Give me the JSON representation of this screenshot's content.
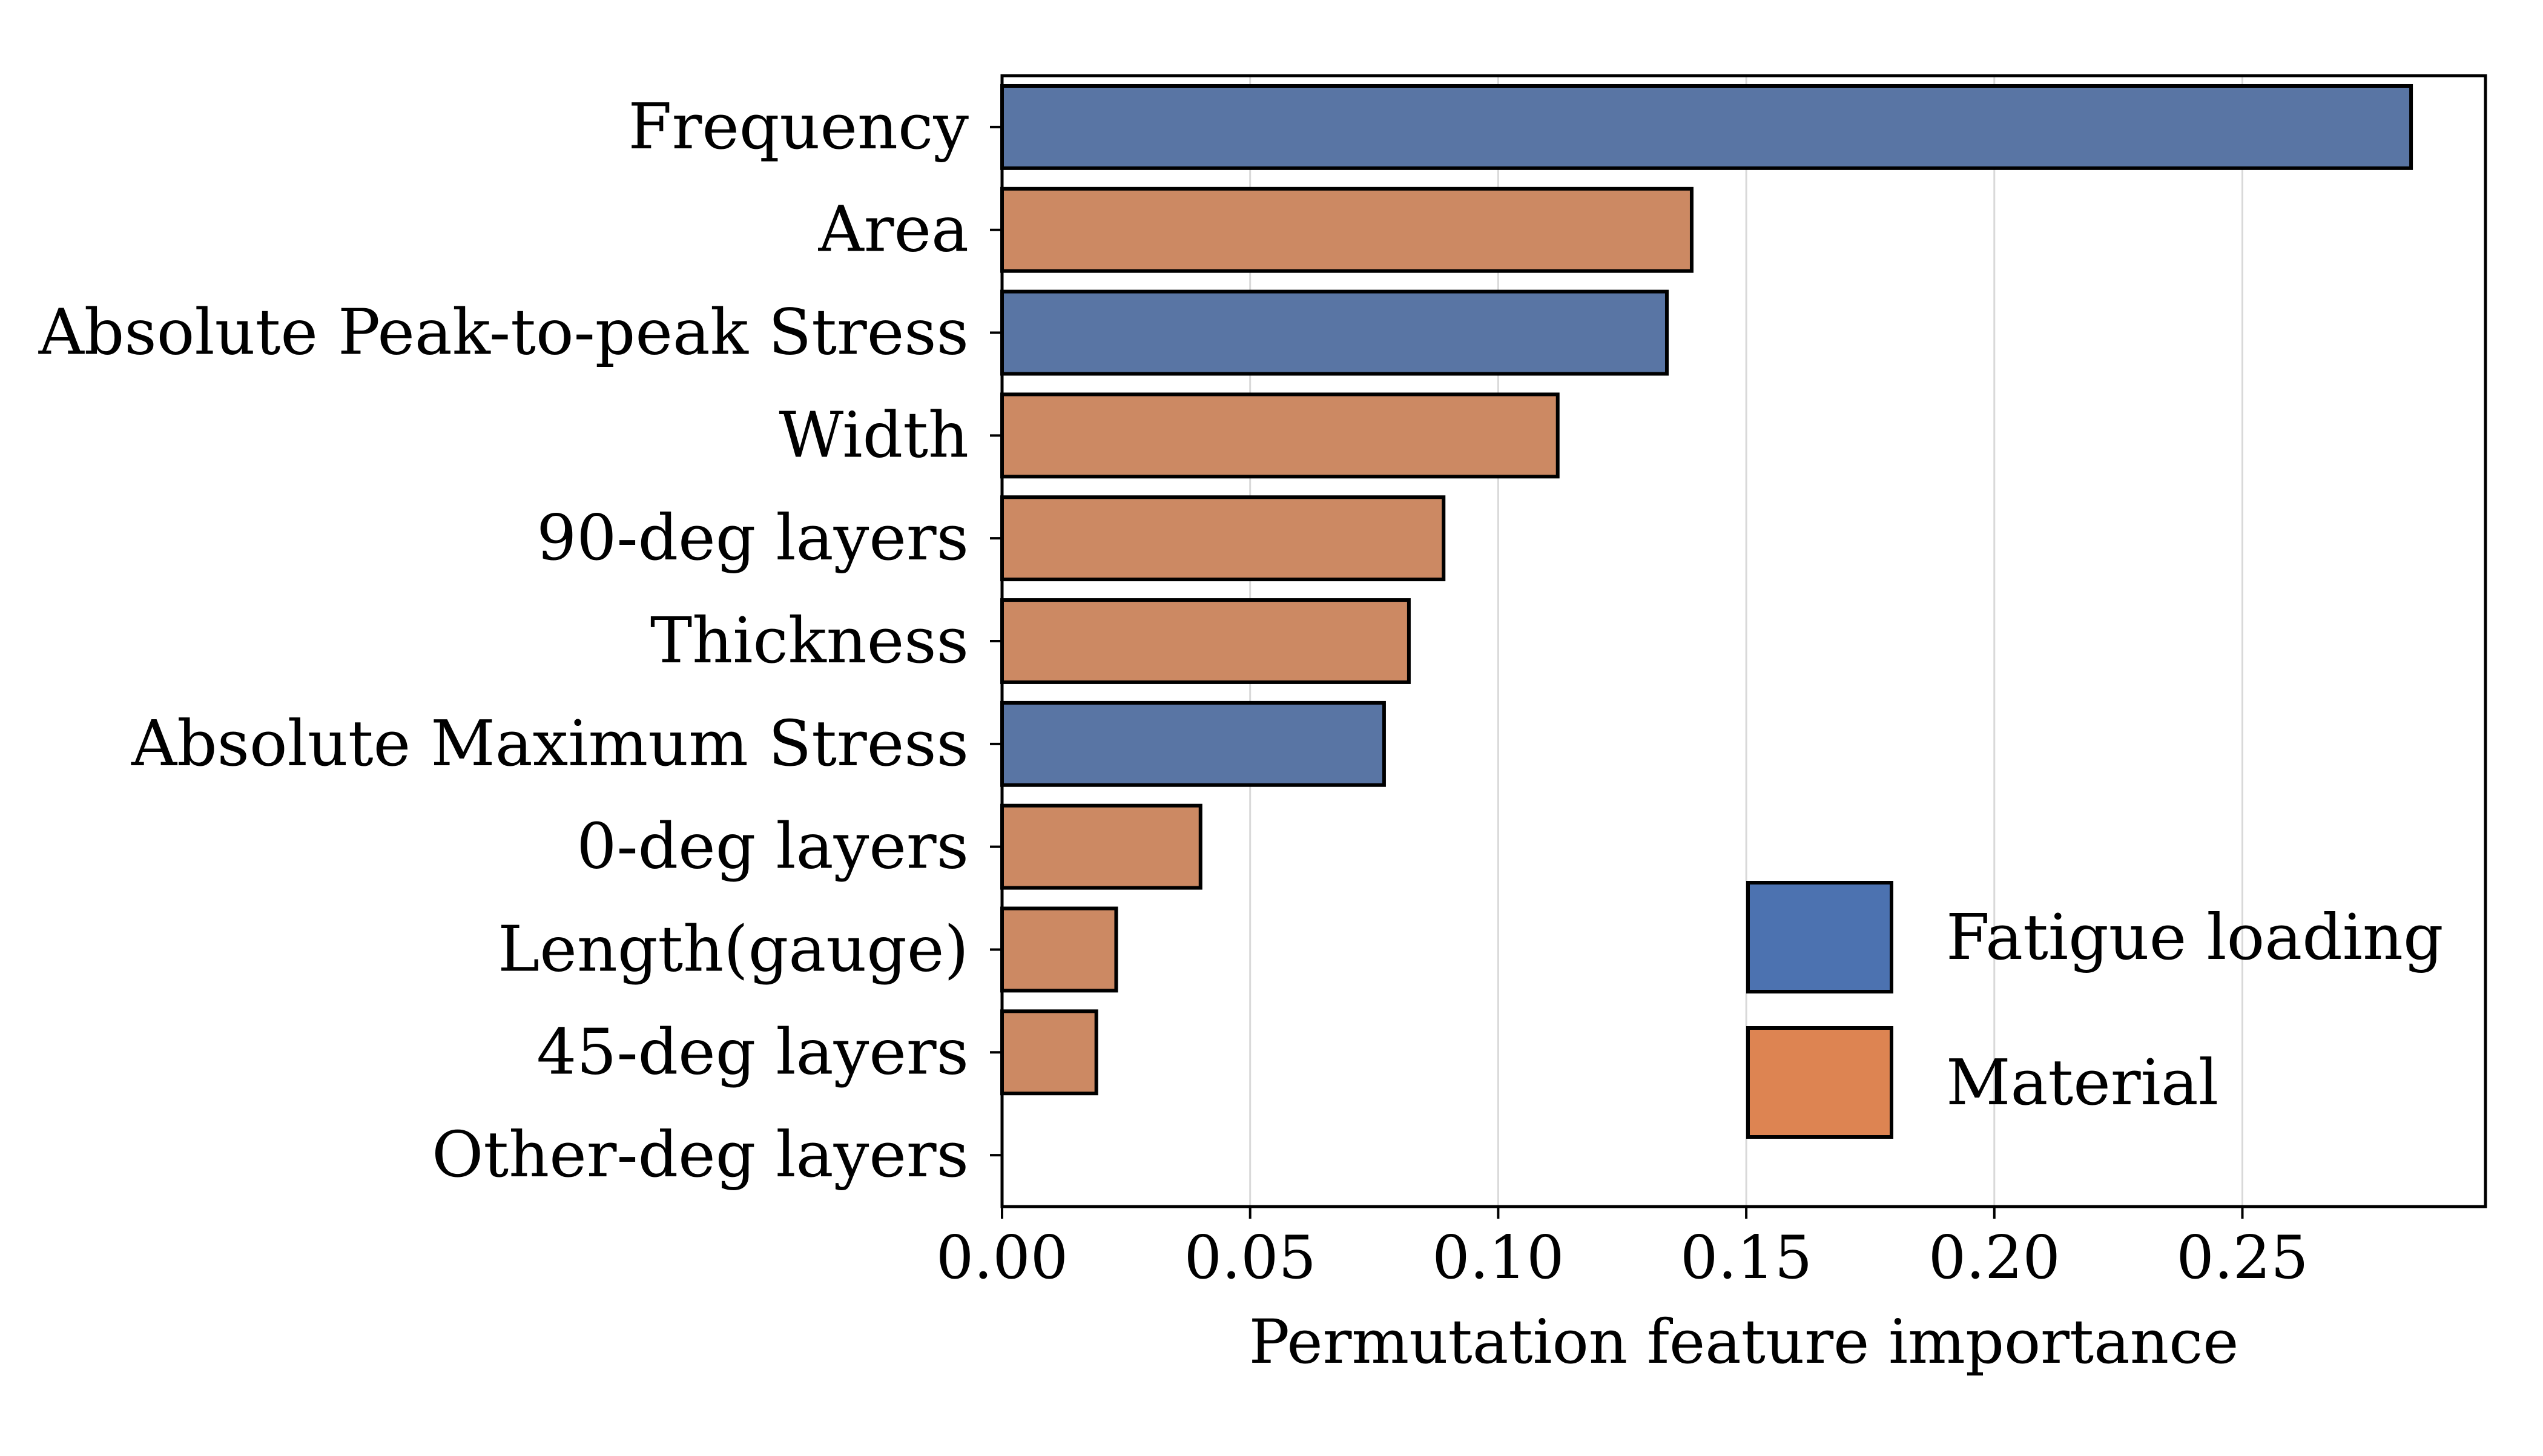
{
  "chart_data": {
    "type": "bar",
    "orientation": "horizontal",
    "title": "",
    "xlabel": "Permutation feature importance",
    "ylabel": "",
    "xlim": [
      0,
      0.299
    ],
    "xticks": [
      0.0,
      0.05,
      0.1,
      0.15,
      0.2,
      0.25
    ],
    "xtick_labels": [
      "0.00",
      "0.05",
      "0.10",
      "0.15",
      "0.20",
      "0.25"
    ],
    "grid": "vertical",
    "legend_position": "lower-right",
    "categories": [
      "Frequency",
      "Area",
      "Absolute Peak-to-peak Stress",
      "Width",
      "90-deg layers",
      "Thickness",
      "Absolute Maximum Stress",
      "0-deg layers",
      "Length(gauge)",
      "45-deg layers",
      "Other-deg layers"
    ],
    "values": [
      0.284,
      0.139,
      0.134,
      0.112,
      0.089,
      0.082,
      0.077,
      0.04,
      0.023,
      0.019,
      0.0
    ],
    "groups": [
      "Fatigue loading",
      "Material",
      "Fatigue loading",
      "Material",
      "Material",
      "Material",
      "Fatigue loading",
      "Material",
      "Material",
      "Material",
      "Material"
    ],
    "legend": [
      {
        "name": "Fatigue loading",
        "color": "#4c72b0"
      },
      {
        "name": "Material",
        "color": "#dd8452"
      }
    ],
    "bar_colors": {
      "Fatigue loading": "#5975a4",
      "Material": "#cc8963"
    }
  }
}
